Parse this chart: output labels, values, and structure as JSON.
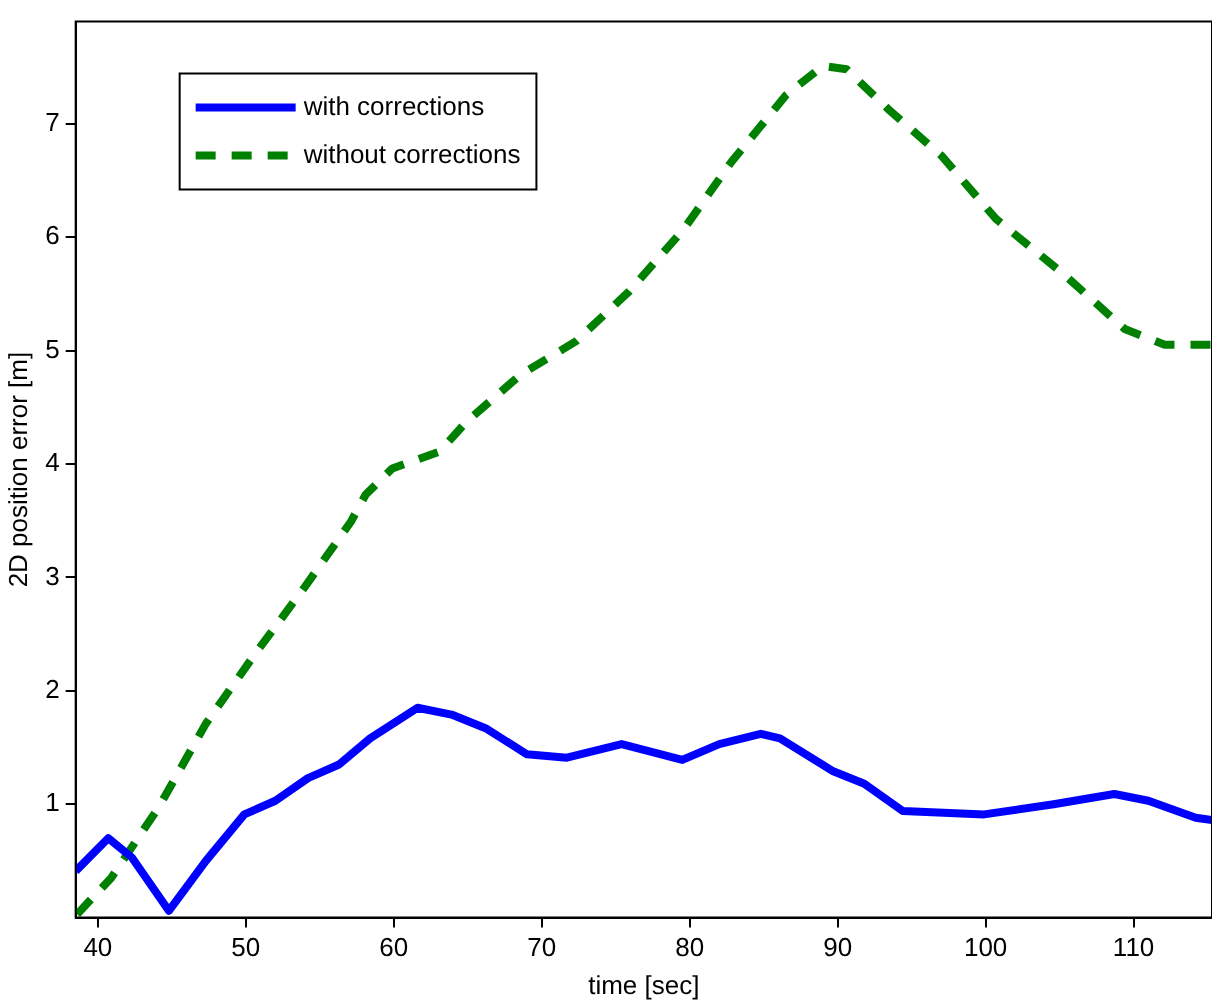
{
  "chart_data": {
    "type": "line",
    "xlabel": "time [sec]",
    "ylabel": "2D position error [m]",
    "xlim": [
      38.5,
      115.3
    ],
    "xticks": [
      40,
      50,
      60,
      70,
      80,
      90,
      100,
      110
    ],
    "ylim": [
      0,
      7.9
    ],
    "yticks": [
      1,
      2,
      3,
      4,
      5,
      6,
      7
    ],
    "grid": false,
    "legend": "top left",
    "marker": "none",
    "series": [
      {
        "name": "with corrections",
        "color": "#0000ff",
        "line_style": "solid",
        "x": [
          38.5,
          40.7,
          42.3,
          44.8,
          47.3,
          49.9,
          52,
          54.2,
          56.3,
          58.4,
          61.6,
          63.9,
          66.2,
          69,
          71.7,
          75.4,
          79.5,
          82,
          84.8,
          86.1,
          89.7,
          91.8,
          94.4,
          99.9,
          104.6,
          108.7,
          111,
          114.2,
          115.3
        ],
        "values": [
          0.41,
          0.7,
          0.53,
          0.06,
          0.5,
          0.91,
          1.03,
          1.23,
          1.35,
          1.58,
          1.85,
          1.79,
          1.67,
          1.44,
          1.41,
          1.53,
          1.39,
          1.53,
          1.62,
          1.58,
          1.29,
          1.18,
          0.94,
          0.91,
          1.0,
          1.09,
          1.03,
          0.88,
          0.86
        ]
      },
      {
        "name": "without corrections",
        "color": "#008000",
        "line_style": "dashed",
        "x": [
          38.6,
          40.9,
          44.1,
          47.3,
          50.6,
          53.9,
          57.1,
          58.1,
          59.9,
          63.1,
          64.9,
          68.6,
          72.3,
          75.9,
          79.6,
          82.8,
          86.5,
          89,
          90.6,
          93.4,
          97,
          100.7,
          105.3,
          109.4,
          112.1,
          115.3
        ],
        "values": [
          0.03,
          0.35,
          0.97,
          1.71,
          2.32,
          2.9,
          3.49,
          3.73,
          3.96,
          4.11,
          4.37,
          4.79,
          5.08,
          5.52,
          6.07,
          6.66,
          7.25,
          7.51,
          7.48,
          7.13,
          6.72,
          6.16,
          5.67,
          5.19,
          5.05,
          5.05
        ]
      }
    ]
  }
}
